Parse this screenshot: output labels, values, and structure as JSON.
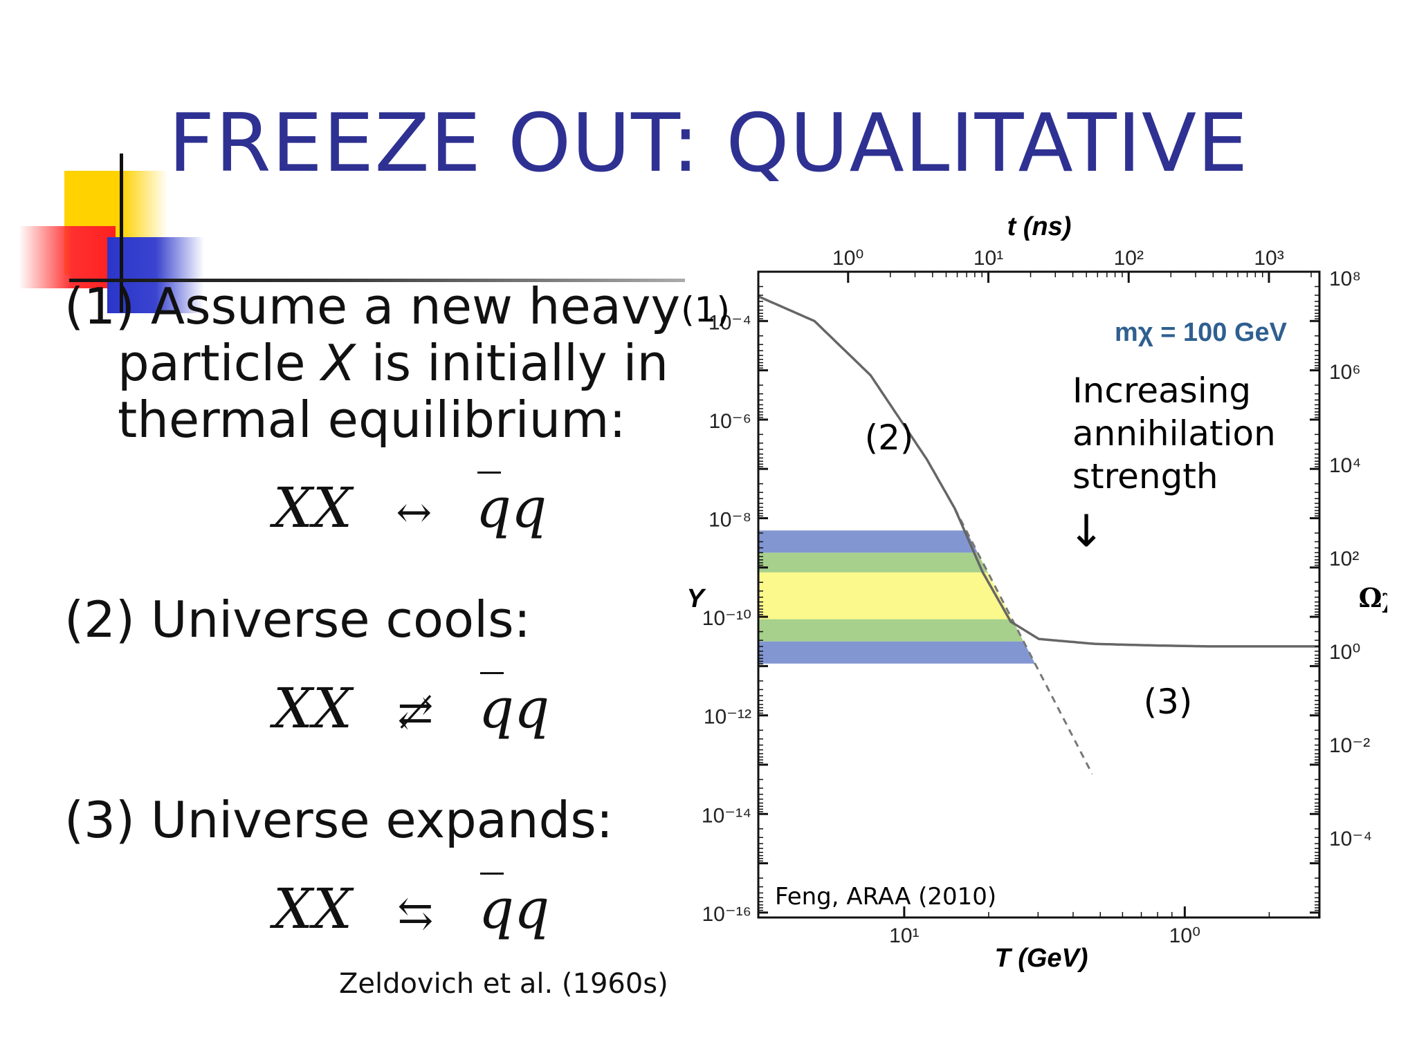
{
  "slide": {
    "title": "FREEZE OUT: QUALITATIVE",
    "point1_line1": "(1) Assume a new heavy",
    "point1_line2_pre": "particle ",
    "point1_line2_x": "X",
    "point1_line2_post": " is initially in",
    "point1_line3": "thermal equilibrium:",
    "point2": "(2) Universe cools:",
    "point3": "(3) Universe expands:",
    "eq_lhs": "XX",
    "eq_rhs": "qq",
    "eq1_symbol": "↔",
    "eq2_symbol": "⇄̸",
    "eq3_symbol": "⇆",
    "citation": "Zeldovich et al. (1960s)"
  },
  "chart_data": {
    "type": "line",
    "title": "",
    "top_xlabel": "t (ns)",
    "top_ticks": [
      "10⁰",
      "10¹",
      "10²",
      "10³"
    ],
    "xlabel": "T (GeV)",
    "bottom_ticks": [
      "10¹",
      "10⁰"
    ],
    "ylabel": "Y",
    "yticks": [
      "10⁻⁴",
      "10⁻⁶",
      "10⁻⁸",
      "10⁻¹⁰",
      "10⁻¹²",
      "10⁻¹⁴",
      "10⁻¹⁶"
    ],
    "ylim_log10": [
      -16.1,
      -3
    ],
    "right_ylabel": "Ωχ",
    "right_ticks": [
      "10⁸",
      "10⁶",
      "10⁴",
      "10²",
      "10⁰",
      "10⁻²",
      "10⁻⁴"
    ],
    "mass_label": "mχ = 100 GeV",
    "credit": "Feng, ARAA (2010)",
    "labels": {
      "equilibrium": "(1)",
      "cooling": "(2)",
      "freezeout": "(3)"
    },
    "annotation": [
      "Increasing",
      "annihilation",
      "strength"
    ],
    "annotation_arrow": "↓",
    "curve_main": {
      "x": [
        0.0,
        0.1,
        0.2,
        0.3,
        0.35,
        0.4,
        0.45,
        0.5,
        0.6,
        0.7,
        0.8,
        1.0
      ],
      "y_log10": [
        -3.5,
        -4.0,
        -5.1,
        -6.8,
        -7.8,
        -9.1,
        -10.1,
        -10.45,
        -10.55,
        -10.58,
        -10.6,
        -10.6
      ]
    },
    "bands": [
      {
        "color": "#8296d2",
        "upper": -8.25,
        "lower": -8.7
      },
      {
        "color": "#a6d08c",
        "upper": -8.7,
        "lower": -9.1
      },
      {
        "color": "#fbf88c",
        "upper": -9.1,
        "lower": -10.05
      },
      {
        "color": "#a6d08c",
        "upper": -10.05,
        "lower": -10.5
      },
      {
        "color": "#8296d2",
        "upper": -10.5,
        "lower": -10.95
      }
    ],
    "line_color": "#666666"
  }
}
